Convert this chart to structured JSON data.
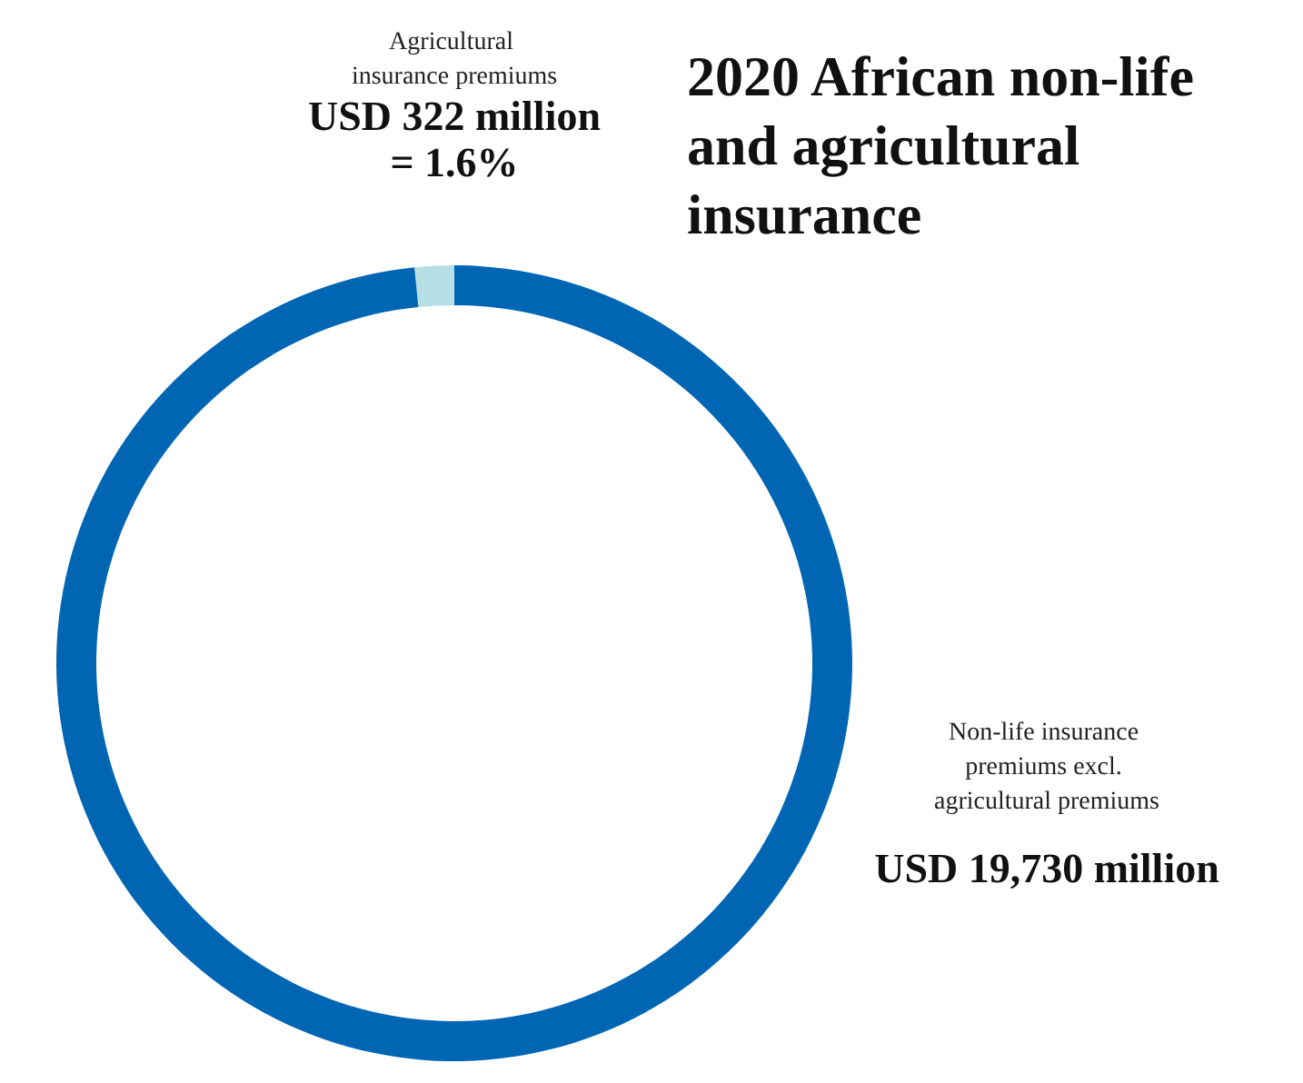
{
  "chart_data": {
    "type": "donut",
    "title": "2020 African non-life and agricultural insurance",
    "categories": [
      "Agricultural insurance premiums",
      "Non-life insurance premiums excl. agricultural premiums"
    ],
    "values": [
      1.6,
      98.4
    ],
    "colors": [
      "#b5dfe5",
      "#0066b3"
    ],
    "value_labels": [
      "USD 322 million",
      "USD 19,730 million"
    ],
    "annotations": [
      "= 1.6%"
    ]
  }
}
